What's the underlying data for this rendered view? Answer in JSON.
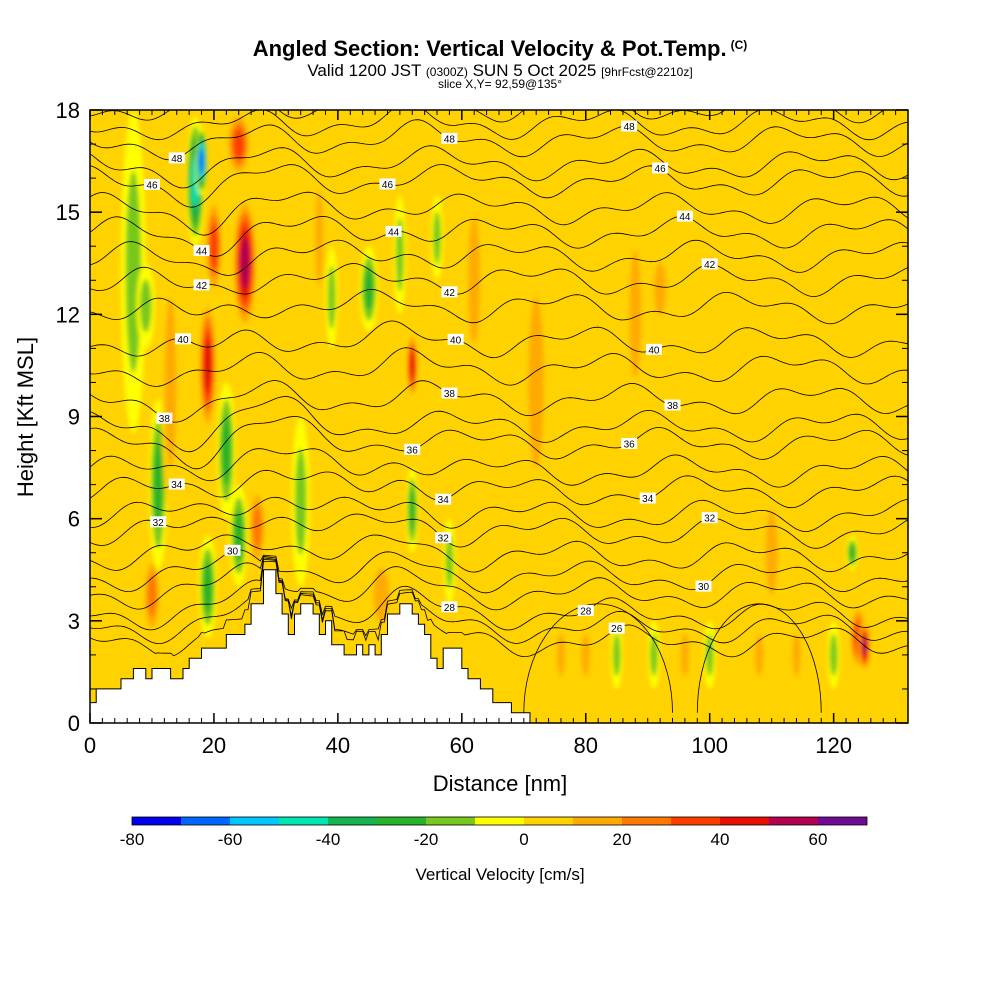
{
  "title": {
    "main": "Angled Section: Vertical Velocity & Pot.Temp.",
    "units_tag": "(C)",
    "valid_prefix": "Valid 1200 JST",
    "valid_utc": "(0300Z)",
    "valid_date": "SUN 5 Oct 2025",
    "forecast": "[9hrFcst@2210z]",
    "slice": "slice X,Y= 92,59@135°"
  },
  "chart_data": {
    "type": "heatmap",
    "title": "Angled Section: Vertical Velocity & Pot.Temp.",
    "xlabel": "Distance [nm]",
    "ylabel": "Height [Kft MSL]",
    "xlim": [
      0,
      132
    ],
    "ylim": [
      0,
      18
    ],
    "x_ticks": [
      "0",
      "20",
      "40",
      "60",
      "80",
      "100",
      "120"
    ],
    "y_ticks": [
      "0",
      "3",
      "6",
      "9",
      "12",
      "15",
      "18"
    ],
    "background_value_cms": 5,
    "colorbar": {
      "label": "Vertical Velocity [cm/s]",
      "tick_labels": [
        "-80",
        "-60",
        "-40",
        "-20",
        "0",
        "20",
        "40",
        "60"
      ],
      "bounds": [
        -80,
        -70,
        -60,
        -50,
        -40,
        -30,
        -20,
        -10,
        0,
        10,
        20,
        30,
        40,
        50,
        60,
        70
      ],
      "colors": [
        "#0000ee",
        "#0066ff",
        "#00c8ff",
        "#00e6b0",
        "#14b450",
        "#28b428",
        "#78c81e",
        "#ffff00",
        "#ffd200",
        "#ffaa00",
        "#ff7800",
        "#ff3c00",
        "#e60f00",
        "#b40050",
        "#6e0a96"
      ]
    },
    "velocity_cells": [
      {
        "x": 7,
        "ylo": 8.5,
        "yhi": 18,
        "w": 4,
        "v": -15
      },
      {
        "x": 9,
        "ylo": 11,
        "yhi": 13.5,
        "w": 3,
        "v": -15
      },
      {
        "x": 10,
        "ylo": 2.5,
        "yhi": 5,
        "w": 3,
        "v": 30
      },
      {
        "x": 11,
        "ylo": 4.5,
        "yhi": 9.5,
        "w": 3,
        "v": -25
      },
      {
        "x": 13,
        "ylo": 6,
        "yhi": 14,
        "w": 3,
        "v": 15
      },
      {
        "x": 17,
        "ylo": 14,
        "yhi": 17.8,
        "w": 3,
        "v": -45
      },
      {
        "x": 18,
        "ylo": 15.5,
        "yhi": 17.5,
        "w": 2,
        "v": -70
      },
      {
        "x": 19,
        "ylo": 8.5,
        "yhi": 12.5,
        "w": 3,
        "v": 45
      },
      {
        "x": 19,
        "ylo": 2.5,
        "yhi": 5.5,
        "w": 3,
        "v": -30
      },
      {
        "x": 20,
        "ylo": 12.5,
        "yhi": 15.5,
        "w": 3,
        "v": 40
      },
      {
        "x": 22,
        "ylo": 6,
        "yhi": 10,
        "w": 3,
        "v": -25
      },
      {
        "x": 24,
        "ylo": 16,
        "yhi": 18,
        "w": 4,
        "v": 40
      },
      {
        "x": 24,
        "ylo": 4,
        "yhi": 7,
        "w": 3,
        "v": -25
      },
      {
        "x": 25,
        "ylo": 11.5,
        "yhi": 15.5,
        "w": 4,
        "v": 55
      },
      {
        "x": 27,
        "ylo": 4.5,
        "yhi": 7,
        "w": 3,
        "v": 25
      },
      {
        "x": 34,
        "ylo": 4,
        "yhi": 9,
        "w": 3,
        "v": -15
      },
      {
        "x": 37,
        "ylo": 12,
        "yhi": 16.5,
        "w": 2,
        "v": 20
      },
      {
        "x": 39,
        "ylo": 11,
        "yhi": 14,
        "w": 2,
        "v": -15
      },
      {
        "x": 45,
        "ylo": 11.5,
        "yhi": 14,
        "w": 3,
        "v": -25
      },
      {
        "x": 47,
        "ylo": 2.5,
        "yhi": 5,
        "w": 4,
        "v": 15
      },
      {
        "x": 50,
        "ylo": 12,
        "yhi": 15.5,
        "w": 2,
        "v": -15
      },
      {
        "x": 52,
        "ylo": 9.5,
        "yhi": 11.5,
        "w": 2,
        "v": 45
      },
      {
        "x": 52,
        "ylo": 5,
        "yhi": 7.5,
        "w": 2,
        "v": -30
      },
      {
        "x": 56,
        "ylo": 13,
        "yhi": 15.5,
        "w": 2,
        "v": -15
      },
      {
        "x": 58,
        "ylo": 3.5,
        "yhi": 6,
        "w": 2,
        "v": -15
      },
      {
        "x": 62,
        "ylo": 10,
        "yhi": 16,
        "w": 3,
        "v": 12
      },
      {
        "x": 72,
        "ylo": 6,
        "yhi": 14,
        "w": 4,
        "v": 12
      },
      {
        "x": 76,
        "ylo": 1,
        "yhi": 3,
        "w": 2,
        "v": 20
      },
      {
        "x": 80,
        "ylo": 1,
        "yhi": 3,
        "w": 2,
        "v": 15
      },
      {
        "x": 85,
        "ylo": 1,
        "yhi": 3,
        "w": 2,
        "v": -15
      },
      {
        "x": 88,
        "ylo": 9,
        "yhi": 15,
        "w": 3,
        "v": 12
      },
      {
        "x": 91,
        "ylo": 1,
        "yhi": 3,
        "w": 2,
        "v": -15
      },
      {
        "x": 92,
        "ylo": 11.5,
        "yhi": 14,
        "w": 3,
        "v": 20
      },
      {
        "x": 96,
        "ylo": 1,
        "yhi": 3,
        "w": 2,
        "v": 20
      },
      {
        "x": 100,
        "ylo": 1,
        "yhi": 3,
        "w": 2,
        "v": -15
      },
      {
        "x": 108,
        "ylo": 1,
        "yhi": 3,
        "w": 2,
        "v": 15
      },
      {
        "x": 110,
        "ylo": 3,
        "yhi": 7,
        "w": 3,
        "v": 12
      },
      {
        "x": 114,
        "ylo": 1,
        "yhi": 3,
        "w": 2,
        "v": 15
      },
      {
        "x": 120,
        "ylo": 1,
        "yhi": 3,
        "w": 2,
        "v": -20
      },
      {
        "x": 123,
        "ylo": 4.5,
        "yhi": 5.5,
        "w": 2,
        "v": -25
      },
      {
        "x": 124,
        "ylo": 1.5,
        "yhi": 3.5,
        "w": 3,
        "v": 40
      },
      {
        "x": 125,
        "ylo": 1.5,
        "yhi": 3,
        "w": 2,
        "v": 60
      }
    ],
    "terrain": [
      [
        0,
        0
      ],
      [
        0,
        0.6
      ],
      [
        1,
        0.6
      ],
      [
        1,
        1.0
      ],
      [
        5,
        1.0
      ],
      [
        5,
        1.3
      ],
      [
        7,
        1.3
      ],
      [
        7,
        1.6
      ],
      [
        9,
        1.6
      ],
      [
        9,
        1.3
      ],
      [
        10,
        1.3
      ],
      [
        10,
        1.6
      ],
      [
        13,
        1.6
      ],
      [
        13,
        1.3
      ],
      [
        15,
        1.3
      ],
      [
        15,
        1.6
      ],
      [
        16,
        1.6
      ],
      [
        16,
        1.9
      ],
      [
        18,
        1.9
      ],
      [
        18,
        2.2
      ],
      [
        22,
        2.2
      ],
      [
        22,
        2.6
      ],
      [
        25,
        2.6
      ],
      [
        25,
        2.9
      ],
      [
        26,
        2.9
      ],
      [
        26,
        3.5
      ],
      [
        28,
        3.5
      ],
      [
        28,
        4.5
      ],
      [
        30,
        4.5
      ],
      [
        30,
        3.8
      ],
      [
        31,
        3.8
      ],
      [
        31,
        3.2
      ],
      [
        32,
        3.2
      ],
      [
        32,
        2.6
      ],
      [
        33,
        2.6
      ],
      [
        33,
        3.2
      ],
      [
        34,
        3.2
      ],
      [
        34,
        3.5
      ],
      [
        36,
        3.5
      ],
      [
        36,
        3.2
      ],
      [
        37,
        3.2
      ],
      [
        37,
        2.6
      ],
      [
        38,
        2.6
      ],
      [
        38,
        3.0
      ],
      [
        39,
        3.0
      ],
      [
        39,
        2.3
      ],
      [
        41,
        2.3
      ],
      [
        41,
        2.0
      ],
      [
        43,
        2.0
      ],
      [
        43,
        2.3
      ],
      [
        44,
        2.3
      ],
      [
        44,
        2.0
      ],
      [
        45,
        2.0
      ],
      [
        45,
        2.3
      ],
      [
        46,
        2.3
      ],
      [
        46,
        2.0
      ],
      [
        47,
        2.0
      ],
      [
        47,
        2.6
      ],
      [
        48,
        2.6
      ],
      [
        48,
        3.2
      ],
      [
        50,
        3.2
      ],
      [
        50,
        3.5
      ],
      [
        52,
        3.5
      ],
      [
        52,
        3.2
      ],
      [
        53,
        3.2
      ],
      [
        53,
        2.9
      ],
      [
        54,
        2.9
      ],
      [
        54,
        2.6
      ],
      [
        55,
        2.6
      ],
      [
        55,
        1.9
      ],
      [
        56,
        1.9
      ],
      [
        56,
        1.6
      ],
      [
        57,
        1.6
      ],
      [
        57,
        2.2
      ],
      [
        60,
        2.2
      ],
      [
        60,
        1.6
      ],
      [
        61,
        1.6
      ],
      [
        61,
        1.3
      ],
      [
        63,
        1.3
      ],
      [
        63,
        1.0
      ],
      [
        65,
        1.0
      ],
      [
        65,
        0.6
      ],
      [
        68,
        0.6
      ],
      [
        68,
        0.3
      ],
      [
        71,
        0.3
      ],
      [
        71,
        0
      ],
      [
        132,
        0
      ]
    ],
    "theta_contours": [
      {
        "value": 26,
        "base": 2.4,
        "label": "26",
        "label_x": 85
      },
      {
        "value": 27,
        "base": 2.8
      },
      {
        "value": 28,
        "base": 3.2,
        "label": "28",
        "label_x": 80,
        "label_x2": 58
      },
      {
        "value": 29,
        "base": 3.8
      },
      {
        "value": 30,
        "base": 4.3,
        "label": "30",
        "label_x": 99,
        "label_x2": 23
      },
      {
        "value": 31,
        "base": 4.9
      },
      {
        "value": 32,
        "base": 5.6,
        "label": "32",
        "label_x": 100,
        "label_x2": 57,
        "label_x3": 11
      },
      {
        "value": 33,
        "base": 6.1
      },
      {
        "value": 34,
        "base": 6.8,
        "label": "34",
        "label_x": 90,
        "label_x2": 57,
        "label_x3": 14
      },
      {
        "value": 35,
        "base": 7.4
      },
      {
        "value": 36,
        "base": 8.2,
        "label": "36",
        "label_x": 87,
        "label_x2": 52
      },
      {
        "value": 37,
        "base": 8.7
      },
      {
        "value": 38,
        "base": 9.5,
        "label": "38",
        "label_x": 94,
        "label_x2": 58,
        "label_x3": 12
      },
      {
        "value": 39,
        "base": 10.4
      },
      {
        "value": 40,
        "base": 11.2,
        "label": "40",
        "label_x": 91,
        "label_x2": 59,
        "label_x3": 15
      },
      {
        "value": 41,
        "base": 12.2
      },
      {
        "value": 42,
        "base": 13.0,
        "label": "42",
        "label_x": 100,
        "label_x2": 58,
        "label_x3": 18
      },
      {
        "value": 43,
        "base": 13.7
      },
      {
        "value": 44,
        "base": 14.4,
        "label": "44",
        "label_x": 96,
        "label_x2": 49,
        "label_x3": 18
      },
      {
        "value": 45,
        "base": 15.1
      },
      {
        "value": 46,
        "base": 15.9,
        "label": "46",
        "label_x": 92,
        "label_x2": 48,
        "label_x3": 10
      },
      {
        "value": 47,
        "base": 16.4
      },
      {
        "value": 48,
        "base": 17.1,
        "label": "48",
        "label_x": 87,
        "label_x2": 58,
        "label_x3": 14
      },
      {
        "value": 49,
        "base": 17.6
      },
      {
        "value": 50,
        "base": 18.1
      }
    ]
  }
}
